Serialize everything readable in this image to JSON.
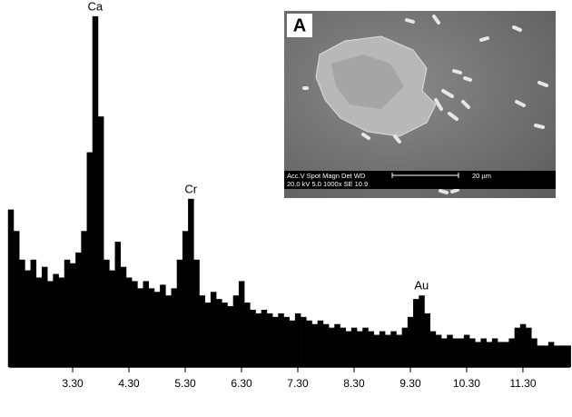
{
  "chart_data": {
    "type": "spectrum",
    "color": "#000000",
    "x": [
      2.2,
      2.3,
      2.4,
      2.5,
      2.6,
      2.7,
      2.8,
      2.9,
      3.0,
      3.1,
      3.2,
      3.3,
      3.4,
      3.5,
      3.6,
      3.7,
      3.8,
      3.9,
      4.0,
      4.1,
      4.2,
      4.3,
      4.4,
      4.5,
      4.6,
      4.7,
      4.8,
      4.9,
      5.0,
      5.1,
      5.2,
      5.3,
      5.4,
      5.5,
      5.6,
      5.7,
      5.8,
      5.9,
      6.0,
      6.1,
      6.2,
      6.3,
      6.4,
      6.5,
      6.6,
      6.7,
      6.8,
      6.9,
      7.0,
      7.1,
      7.2,
      7.3,
      7.4,
      7.5,
      7.6,
      7.7,
      7.8,
      7.9,
      8.0,
      8.1,
      8.2,
      8.3,
      8.4,
      8.5,
      8.6,
      8.7,
      8.8,
      8.9,
      9.0,
      9.1,
      9.2,
      9.3,
      9.4,
      9.5,
      9.6,
      9.7,
      9.8,
      9.9,
      10.0,
      10.1,
      10.2,
      10.3,
      10.4,
      10.5,
      10.6,
      10.7,
      10.8,
      10.9,
      11.0,
      11.1,
      11.2,
      11.3,
      11.4,
      11.5,
      11.6,
      11.7,
      11.8,
      11.9,
      12.0,
      12.1
    ],
    "values": [
      44,
      38,
      30,
      27,
      30,
      25,
      28,
      24,
      26,
      25,
      30,
      29,
      32,
      38,
      60,
      98,
      70,
      30,
      27,
      35,
      28,
      25,
      24,
      22,
      24,
      22,
      21,
      23,
      20,
      22,
      30,
      38,
      47,
      30,
      20,
      18,
      21,
      19,
      18,
      17,
      20,
      24,
      18,
      16,
      15,
      16,
      15,
      14,
      15,
      14,
      13,
      15,
      14,
      13,
      12,
      13,
      12,
      11,
      12,
      11,
      10,
      11,
      10,
      11,
      10,
      9,
      10,
      9,
      10,
      9,
      11,
      14,
      19,
      20,
      15,
      10,
      9,
      8,
      9,
      8,
      8,
      9,
      8,
      7,
      8,
      7,
      8,
      7,
      7,
      8,
      11,
      12,
      11,
      8,
      6,
      6,
      7,
      6,
      6,
      6
    ],
    "xlim": [
      2.17,
      12.14
    ],
    "ylim": [
      0,
      100
    ],
    "xticks": [
      {
        "value": 3.3,
        "label": "3.30"
      },
      {
        "value": 4.3,
        "label": "4.30"
      },
      {
        "value": 5.3,
        "label": "5.30"
      },
      {
        "value": 6.3,
        "label": "6.30"
      },
      {
        "value": 7.3,
        "label": "7.30"
      },
      {
        "value": 8.3,
        "label": "8.30"
      },
      {
        "value": 9.3,
        "label": "9.30"
      },
      {
        "value": 10.3,
        "label": "10.30"
      },
      {
        "value": 11.3,
        "label": "11.30"
      }
    ],
    "annotations": [
      {
        "text": "Ca",
        "x": 3.7,
        "y": 98
      },
      {
        "text": "Cr",
        "x": 5.4,
        "y": 47
      },
      {
        "text": "Au",
        "x": 9.5,
        "y": 20
      }
    ]
  },
  "inset": {
    "label": "A",
    "info_header": "Acc.V  Spot Magn   Det  WD",
    "info_values": "20.0 kV 5.0   1000x   SE   10.9",
    "scale_label": "20 µm"
  }
}
